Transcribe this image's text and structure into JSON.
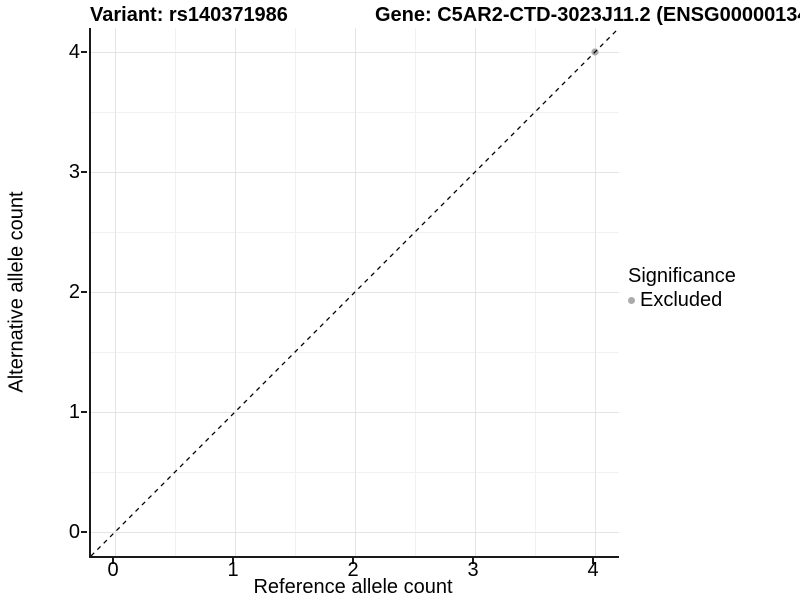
{
  "chart_data": {
    "type": "scatter",
    "title_left": "Variant: rs140371986",
    "title_right": "Gene: C5AR2-CTD-3023J11.2 (ENSG00000134",
    "xlabel": "Reference allele count",
    "ylabel": "Alternative allele count",
    "xlim": [
      -0.2,
      4.2
    ],
    "ylim": [
      -0.2,
      4.2
    ],
    "xticks": [
      0,
      1,
      2,
      3,
      4
    ],
    "yticks": [
      0,
      1,
      2,
      3,
      4
    ],
    "xtick_labels": [
      "0",
      "1",
      "2",
      "3",
      "4"
    ],
    "ytick_labels": [
      "0",
      "1",
      "2",
      "3",
      "4"
    ],
    "minor_xticks": [
      0.5,
      1.5,
      2.5,
      3.5
    ],
    "minor_yticks": [
      0.5,
      1.5,
      2.5,
      3.5
    ],
    "grid": true,
    "points": [
      {
        "x": 4,
        "y": 4,
        "series": "Excluded"
      }
    ],
    "reference_line": {
      "slope": 1,
      "intercept": 0,
      "style": "dashed",
      "color": "#000000"
    },
    "legend": {
      "position": "right",
      "title": "Significance",
      "items": [
        {
          "label": "Excluded",
          "color": "#ababab"
        }
      ]
    },
    "colors": {
      "background": "#ffffff",
      "grid_major": "#e4e4e4",
      "grid_minor": "#f1f1f1",
      "axis": "#1a1a1a",
      "text": "#000000",
      "point_excluded": "#ababab"
    }
  }
}
